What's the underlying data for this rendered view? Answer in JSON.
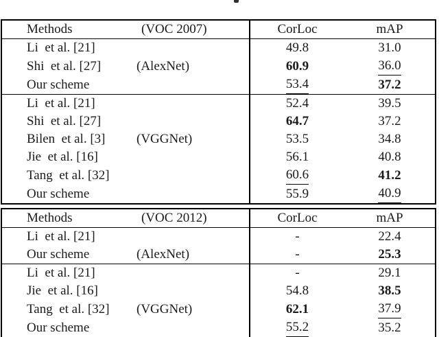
{
  "colors": {
    "background": "#ffffff",
    "text": "#1a1a1a",
    "rules": "#000000"
  },
  "artifacts": {
    "caption_fragment": "partial glyph of cropped caption line above table"
  },
  "tables": [
    {
      "id": "voc2007",
      "header": {
        "methods": "Methods",
        "dataset": "(VOC 2007)",
        "corloc": "CorLoc",
        "map": "mAP"
      },
      "groups": [
        {
          "rows": [
            {
              "method": "Li  et al. [21]",
              "note": "",
              "corloc": {
                "v": "49.8"
              },
              "map": {
                "v": "31.0"
              }
            },
            {
              "method": "Shi  et al. [27]",
              "note": "(AlexNet)",
              "corloc": {
                "v": "60.9",
                "f": "bold"
              },
              "map": {
                "v": "36.0",
                "f": "underline"
              }
            },
            {
              "method": "Our scheme",
              "note": "",
              "corloc": {
                "v": "53.4",
                "f": "underline"
              },
              "map": {
                "v": "37.2",
                "f": "bold"
              }
            }
          ]
        },
        {
          "rows": [
            {
              "method": "Li  et al. [21]",
              "note": "",
              "corloc": {
                "v": "52.4"
              },
              "map": {
                "v": "39.5"
              }
            },
            {
              "method": "Shi  et al. [27]",
              "note": "",
              "corloc": {
                "v": "64.7",
                "f": "bold"
              },
              "map": {
                "v": "37.2"
              }
            },
            {
              "method": "Bilen  et al. [3]",
              "note": "(VGGNet)",
              "corloc": {
                "v": "53.5"
              },
              "map": {
                "v": "34.8"
              }
            },
            {
              "method": "Jie  et al. [16]",
              "note": "",
              "corloc": {
                "v": "56.1"
              },
              "map": {
                "v": "40.8"
              }
            },
            {
              "method": "Tang  et al. [32]",
              "note": "",
              "corloc": {
                "v": "60.6",
                "f": "underline"
              },
              "map": {
                "v": "41.2",
                "f": "bold"
              }
            },
            {
              "method": "Our scheme",
              "note": "",
              "corloc": {
                "v": "55.9"
              },
              "map": {
                "v": "40.9",
                "f": "underline"
              }
            }
          ]
        }
      ]
    },
    {
      "id": "voc2012",
      "header": {
        "methods": "Methods",
        "dataset": "(VOC 2012)",
        "corloc": "CorLoc",
        "map": "mAP"
      },
      "groups": [
        {
          "rows": [
            {
              "method": "Li  et al. [21]",
              "note": "",
              "corloc": {
                "v": "-"
              },
              "map": {
                "v": "22.4"
              }
            },
            {
              "method": "Our scheme",
              "note": "(AlexNet)",
              "corloc": {
                "v": "-"
              },
              "map": {
                "v": "25.3",
                "f": "bold"
              }
            }
          ]
        },
        {
          "rows": [
            {
              "method": "Li  et al. [21]",
              "note": "",
              "corloc": {
                "v": "-"
              },
              "map": {
                "v": "29.1"
              }
            },
            {
              "method": "Jie  et al. [16]",
              "note": "",
              "corloc": {
                "v": "54.8"
              },
              "map": {
                "v": "38.5",
                "f": "bold"
              }
            },
            {
              "method": "Tang  et al. [32]",
              "note": "(VGGNet)",
              "corloc": {
                "v": "62.1",
                "f": "bold"
              },
              "map": {
                "v": "37.9",
                "f": "underline"
              }
            },
            {
              "method": "Our scheme",
              "note": "",
              "corloc": {
                "v": "55.2",
                "f": "underline"
              },
              "map": {
                "v": "35.2"
              }
            }
          ]
        }
      ]
    }
  ]
}
